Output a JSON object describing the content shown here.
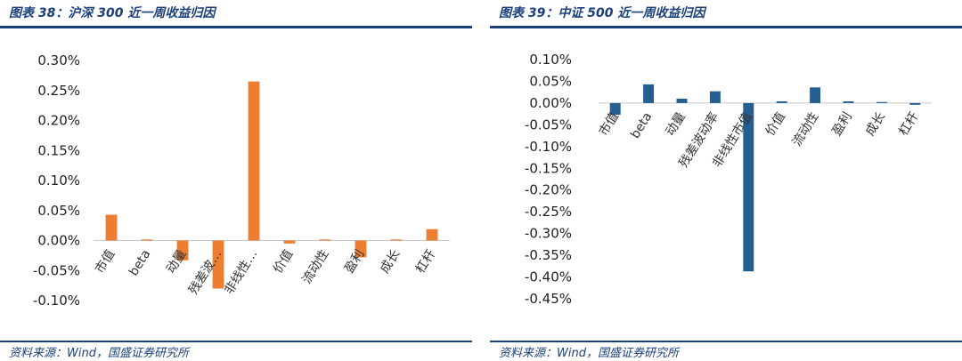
{
  "charts": [
    {
      "title": "图表 38：沪深 300 近一周收益归因",
      "source": "资料来源：Wind，国盛证券研究所"
    },
    {
      "title": "图表 39：中证 500 近一周收益归因",
      "source": "资料来源：Wind，国盛证券研究所"
    }
  ],
  "chart_data": [
    {
      "type": "bar",
      "title": "图表 38：沪深 300 近一周收益归因",
      "categories": [
        "市值",
        "beta",
        "动量",
        "残差波…",
        "非线性…",
        "价值",
        "流动性",
        "盈利",
        "成长",
        "杠杆"
      ],
      "values": [
        0.043,
        0.001,
        -0.033,
        -0.08,
        0.265,
        -0.005,
        0.0,
        -0.028,
        0.001,
        0.019
      ],
      "unit": "%",
      "ylim": [
        -0.1,
        0.3
      ],
      "yticks": [
        "0.30%",
        "0.25%",
        "0.20%",
        "0.15%",
        "0.10%",
        "0.05%",
        "0.00%",
        "-0.05%",
        "-0.10%"
      ],
      "ytick_values": [
        0.3,
        0.25,
        0.2,
        0.15,
        0.1,
        0.05,
        0.0,
        -0.05,
        -0.1
      ],
      "bar_color": "#ED7D31",
      "grid": false
    },
    {
      "type": "bar",
      "title": "图表 39：中证 500 近一周收益归因",
      "categories": [
        "市值",
        "beta",
        "动量",
        "残差波动率",
        "非线性市值",
        "价值",
        "流动性",
        "盈利",
        "成长",
        "杠杆"
      ],
      "values": [
        -0.027,
        0.043,
        0.01,
        0.027,
        -0.387,
        0.004,
        0.036,
        0.004,
        0.0,
        -0.004
      ],
      "unit": "%",
      "ylim": [
        -0.45,
        0.1
      ],
      "yticks": [
        "0.10%",
        "0.05%",
        "0.00%",
        "-0.05%",
        "-0.10%",
        "-0.15%",
        "-0.20%",
        "-0.25%",
        "-0.30%",
        "-0.35%",
        "-0.40%",
        "-0.45%"
      ],
      "ytick_values": [
        0.1,
        0.05,
        0.0,
        -0.05,
        -0.1,
        -0.15,
        -0.2,
        -0.25,
        -0.3,
        -0.35,
        -0.4,
        -0.45
      ],
      "bar_color": "#255E91",
      "grid": false
    }
  ]
}
